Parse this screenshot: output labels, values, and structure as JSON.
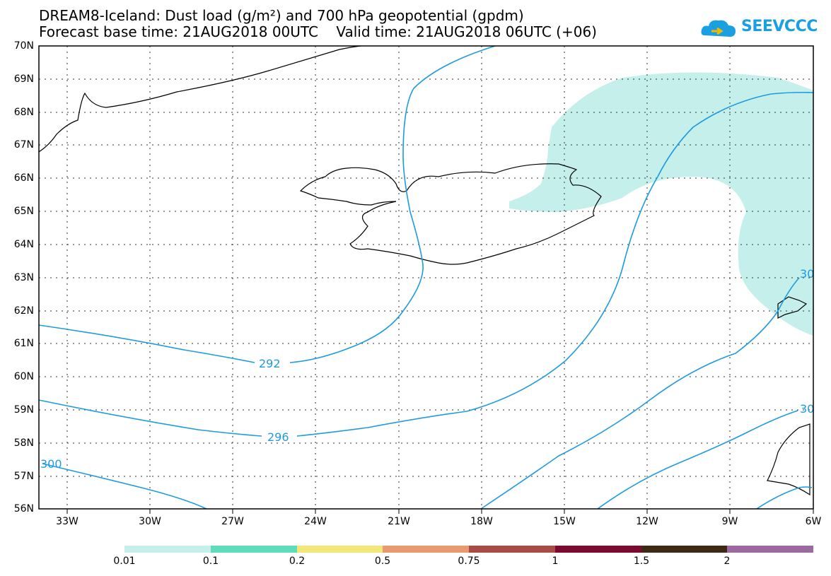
{
  "title": {
    "line1": "DREAM8-Iceland: Dust load (g/m²) and 700 hPa geopotential (gpdm)",
    "line2": "Forecast base time: 21AUG2018 00UTC    Valid time: 21AUG2018 06UTC (+06)"
  },
  "logo": {
    "text": "SEEVCCC",
    "icon": "cloud-icon"
  },
  "map": {
    "lat_labels": [
      "70N",
      "69N",
      "68N",
      "67N",
      "66N",
      "65N",
      "64N",
      "63N",
      "62N",
      "61N",
      "60N",
      "59N",
      "58N",
      "57N",
      "56N"
    ],
    "lon_labels": [
      "33W",
      "30W",
      "27W",
      "24W",
      "21W",
      "18W",
      "15W",
      "12W",
      "9W",
      "6W"
    ],
    "contours": [
      "292",
      "296",
      "300",
      "30",
      "30"
    ],
    "dust_color": "#c5efeb",
    "contour_color": "#1e9be0"
  },
  "colorbar": {
    "labels": [
      "0.01",
      "0.1",
      "0.2",
      "0.5",
      "0.75",
      "1",
      "1.5",
      "2"
    ],
    "colors": [
      "#c5efeb",
      "#5fdcba",
      "#f2e87a",
      "#e89a70",
      "#a84d45",
      "#7a0a30",
      "#3c2a14",
      "#9a6aa0"
    ]
  }
}
